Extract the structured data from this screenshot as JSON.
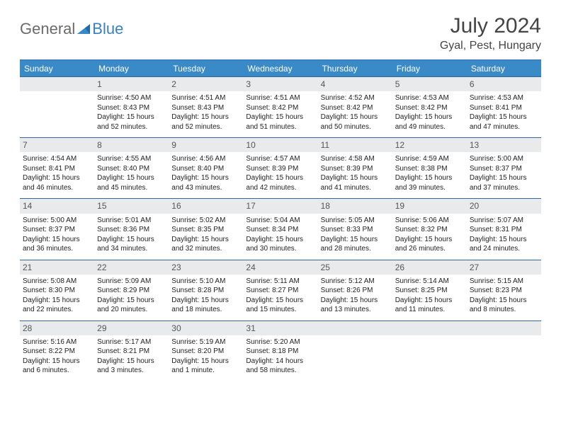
{
  "brand": {
    "word1": "General",
    "word2": "Blue"
  },
  "title": "July 2024",
  "location": "Gyal, Pest, Hungary",
  "colors": {
    "header_bg": "#3a8ac8",
    "header_border": "#3a7fc0",
    "daynum_bg": "#e9eaeb",
    "day_border": "#2e6aa0",
    "logo_gray": "#6b6b6b",
    "logo_blue": "#3a7fc0"
  },
  "weekdays": [
    "Sunday",
    "Monday",
    "Tuesday",
    "Wednesday",
    "Thursday",
    "Friday",
    "Saturday"
  ],
  "weeks": [
    [
      {
        "n": "",
        "sr": "",
        "ss": "",
        "dl": ""
      },
      {
        "n": "1",
        "sr": "Sunrise: 4:50 AM",
        "ss": "Sunset: 8:43 PM",
        "dl": "Daylight: 15 hours and 52 minutes."
      },
      {
        "n": "2",
        "sr": "Sunrise: 4:51 AM",
        "ss": "Sunset: 8:43 PM",
        "dl": "Daylight: 15 hours and 52 minutes."
      },
      {
        "n": "3",
        "sr": "Sunrise: 4:51 AM",
        "ss": "Sunset: 8:42 PM",
        "dl": "Daylight: 15 hours and 51 minutes."
      },
      {
        "n": "4",
        "sr": "Sunrise: 4:52 AM",
        "ss": "Sunset: 8:42 PM",
        "dl": "Daylight: 15 hours and 50 minutes."
      },
      {
        "n": "5",
        "sr": "Sunrise: 4:53 AM",
        "ss": "Sunset: 8:42 PM",
        "dl": "Daylight: 15 hours and 49 minutes."
      },
      {
        "n": "6",
        "sr": "Sunrise: 4:53 AM",
        "ss": "Sunset: 8:41 PM",
        "dl": "Daylight: 15 hours and 47 minutes."
      }
    ],
    [
      {
        "n": "7",
        "sr": "Sunrise: 4:54 AM",
        "ss": "Sunset: 8:41 PM",
        "dl": "Daylight: 15 hours and 46 minutes."
      },
      {
        "n": "8",
        "sr": "Sunrise: 4:55 AM",
        "ss": "Sunset: 8:40 PM",
        "dl": "Daylight: 15 hours and 45 minutes."
      },
      {
        "n": "9",
        "sr": "Sunrise: 4:56 AM",
        "ss": "Sunset: 8:40 PM",
        "dl": "Daylight: 15 hours and 43 minutes."
      },
      {
        "n": "10",
        "sr": "Sunrise: 4:57 AM",
        "ss": "Sunset: 8:39 PM",
        "dl": "Daylight: 15 hours and 42 minutes."
      },
      {
        "n": "11",
        "sr": "Sunrise: 4:58 AM",
        "ss": "Sunset: 8:39 PM",
        "dl": "Daylight: 15 hours and 41 minutes."
      },
      {
        "n": "12",
        "sr": "Sunrise: 4:59 AM",
        "ss": "Sunset: 8:38 PM",
        "dl": "Daylight: 15 hours and 39 minutes."
      },
      {
        "n": "13",
        "sr": "Sunrise: 5:00 AM",
        "ss": "Sunset: 8:37 PM",
        "dl": "Daylight: 15 hours and 37 minutes."
      }
    ],
    [
      {
        "n": "14",
        "sr": "Sunrise: 5:00 AM",
        "ss": "Sunset: 8:37 PM",
        "dl": "Daylight: 15 hours and 36 minutes."
      },
      {
        "n": "15",
        "sr": "Sunrise: 5:01 AM",
        "ss": "Sunset: 8:36 PM",
        "dl": "Daylight: 15 hours and 34 minutes."
      },
      {
        "n": "16",
        "sr": "Sunrise: 5:02 AM",
        "ss": "Sunset: 8:35 PM",
        "dl": "Daylight: 15 hours and 32 minutes."
      },
      {
        "n": "17",
        "sr": "Sunrise: 5:04 AM",
        "ss": "Sunset: 8:34 PM",
        "dl": "Daylight: 15 hours and 30 minutes."
      },
      {
        "n": "18",
        "sr": "Sunrise: 5:05 AM",
        "ss": "Sunset: 8:33 PM",
        "dl": "Daylight: 15 hours and 28 minutes."
      },
      {
        "n": "19",
        "sr": "Sunrise: 5:06 AM",
        "ss": "Sunset: 8:32 PM",
        "dl": "Daylight: 15 hours and 26 minutes."
      },
      {
        "n": "20",
        "sr": "Sunrise: 5:07 AM",
        "ss": "Sunset: 8:31 PM",
        "dl": "Daylight: 15 hours and 24 minutes."
      }
    ],
    [
      {
        "n": "21",
        "sr": "Sunrise: 5:08 AM",
        "ss": "Sunset: 8:30 PM",
        "dl": "Daylight: 15 hours and 22 minutes."
      },
      {
        "n": "22",
        "sr": "Sunrise: 5:09 AM",
        "ss": "Sunset: 8:29 PM",
        "dl": "Daylight: 15 hours and 20 minutes."
      },
      {
        "n": "23",
        "sr": "Sunrise: 5:10 AM",
        "ss": "Sunset: 8:28 PM",
        "dl": "Daylight: 15 hours and 18 minutes."
      },
      {
        "n": "24",
        "sr": "Sunrise: 5:11 AM",
        "ss": "Sunset: 8:27 PM",
        "dl": "Daylight: 15 hours and 15 minutes."
      },
      {
        "n": "25",
        "sr": "Sunrise: 5:12 AM",
        "ss": "Sunset: 8:26 PM",
        "dl": "Daylight: 15 hours and 13 minutes."
      },
      {
        "n": "26",
        "sr": "Sunrise: 5:14 AM",
        "ss": "Sunset: 8:25 PM",
        "dl": "Daylight: 15 hours and 11 minutes."
      },
      {
        "n": "27",
        "sr": "Sunrise: 5:15 AM",
        "ss": "Sunset: 8:23 PM",
        "dl": "Daylight: 15 hours and 8 minutes."
      }
    ],
    [
      {
        "n": "28",
        "sr": "Sunrise: 5:16 AM",
        "ss": "Sunset: 8:22 PM",
        "dl": "Daylight: 15 hours and 6 minutes."
      },
      {
        "n": "29",
        "sr": "Sunrise: 5:17 AM",
        "ss": "Sunset: 8:21 PM",
        "dl": "Daylight: 15 hours and 3 minutes."
      },
      {
        "n": "30",
        "sr": "Sunrise: 5:19 AM",
        "ss": "Sunset: 8:20 PM",
        "dl": "Daylight: 15 hours and 1 minute."
      },
      {
        "n": "31",
        "sr": "Sunrise: 5:20 AM",
        "ss": "Sunset: 8:18 PM",
        "dl": "Daylight: 14 hours and 58 minutes."
      },
      {
        "n": "",
        "sr": "",
        "ss": "",
        "dl": ""
      },
      {
        "n": "",
        "sr": "",
        "ss": "",
        "dl": ""
      },
      {
        "n": "",
        "sr": "",
        "ss": "",
        "dl": ""
      }
    ]
  ]
}
